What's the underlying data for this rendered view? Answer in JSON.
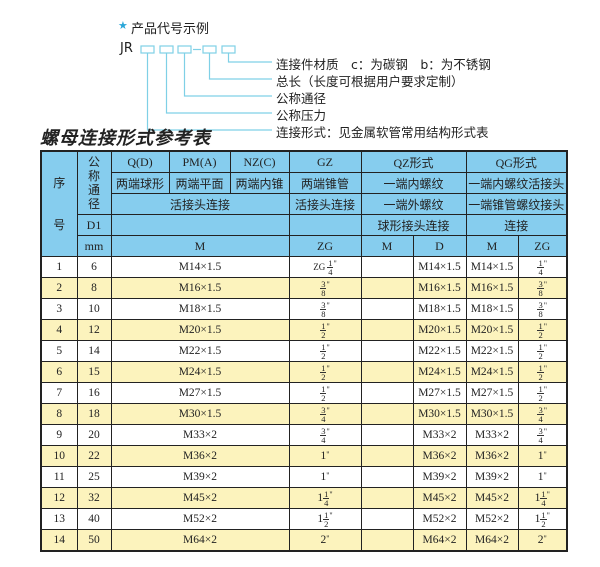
{
  "code_example": {
    "star_icon": "star-icon",
    "title": "产品代号示例",
    "prefix": "JR",
    "line_color": "#7fd0e6",
    "labels": [
      "连接件材质　c：为碳钢　b：为不锈钢",
      "总长（长度可根据用户要求定制）",
      "公称通径",
      "公称压力",
      "连接形式：见金属软管常用结构形式表"
    ]
  },
  "table_title": "螺母连接形式参考表",
  "colors": {
    "header_bg": "#86cdee",
    "highlight_row_bg": "#fcf3bd"
  },
  "header": {
    "seq": "序号",
    "nominal": "公称通径",
    "row1": [
      "Q(D)",
      "PM(A)",
      "NZ(C)",
      "GZ",
      "QZ形式",
      "QG形式"
    ],
    "row2": [
      "两端球形",
      "两端平面",
      "两端内锥",
      "两端锥管",
      "一端内螺纹",
      "一端内螺纹活接头"
    ],
    "row3": [
      "活接头连接",
      "活接头连接",
      "一端外螺纹",
      "一端锥管螺纹接头"
    ],
    "row4": [
      "D1",
      "",
      "",
      "球形接头连接",
      "连接"
    ],
    "row5": [
      "mm",
      "M",
      "ZG",
      "M",
      "D",
      "M",
      "ZG"
    ]
  },
  "rows": [
    {
      "no": "1",
      "d1": "6",
      "m": "M14×1.5",
      "zg": {
        "prefix": "ZG",
        "whole": "",
        "num": "1",
        "den": "4"
      },
      "qz_m": "",
      "qz_d": "M14×1.5",
      "qg_m": "M14×1.5",
      "qg_zg": {
        "whole": "",
        "num": "1",
        "den": "4"
      }
    },
    {
      "no": "2",
      "d1": "8",
      "m": "M16×1.5",
      "zg": {
        "whole": "",
        "num": "3",
        "den": "8"
      },
      "qz_m": "",
      "qz_d": "M16×1.5",
      "qg_m": "M16×1.5",
      "qg_zg": {
        "whole": "",
        "num": "3",
        "den": "8"
      }
    },
    {
      "no": "3",
      "d1": "10",
      "m": "M18×1.5",
      "zg": {
        "whole": "",
        "num": "3",
        "den": "8"
      },
      "qz_m": "",
      "qz_d": "M18×1.5",
      "qg_m": "M18×1.5",
      "qg_zg": {
        "whole": "",
        "num": "3",
        "den": "8"
      }
    },
    {
      "no": "4",
      "d1": "12",
      "m": "M20×1.5",
      "zg": {
        "whole": "",
        "num": "1",
        "den": "2"
      },
      "qz_m": "",
      "qz_d": "M20×1.5",
      "qg_m": "M20×1.5",
      "qg_zg": {
        "whole": "",
        "num": "1",
        "den": "2"
      }
    },
    {
      "no": "5",
      "d1": "14",
      "m": "M22×1.5",
      "zg": {
        "whole": "",
        "num": "1",
        "den": "2"
      },
      "qz_m": "",
      "qz_d": "M22×1.5",
      "qg_m": "M22×1.5",
      "qg_zg": {
        "whole": "",
        "num": "1",
        "den": "2"
      }
    },
    {
      "no": "6",
      "d1": "15",
      "m": "M24×1.5",
      "zg": {
        "whole": "",
        "num": "1",
        "den": "2"
      },
      "qz_m": "",
      "qz_d": "M24×1.5",
      "qg_m": "M24×1.5",
      "qg_zg": {
        "whole": "",
        "num": "1",
        "den": "2"
      }
    },
    {
      "no": "7",
      "d1": "16",
      "m": "M27×1.5",
      "zg": {
        "whole": "",
        "num": "1",
        "den": "2"
      },
      "qz_m": "",
      "qz_d": "M27×1.5",
      "qg_m": "M27×1.5",
      "qg_zg": {
        "whole": "",
        "num": "1",
        "den": "2"
      }
    },
    {
      "no": "8",
      "d1": "18",
      "m": "M30×1.5",
      "zg": {
        "whole": "",
        "num": "3",
        "den": "4"
      },
      "qz_m": "",
      "qz_d": "M30×1.5",
      "qg_m": "M30×1.5",
      "qg_zg": {
        "whole": "",
        "num": "3",
        "den": "4"
      }
    },
    {
      "no": "9",
      "d1": "20",
      "m": "M33×2",
      "zg": {
        "whole": "",
        "num": "3",
        "den": "4"
      },
      "qz_m": "",
      "qz_d": "M33×2",
      "qg_m": "M33×2",
      "qg_zg": {
        "whole": "",
        "num": "3",
        "den": "4"
      }
    },
    {
      "no": "10",
      "d1": "22",
      "m": "M36×2",
      "zg": {
        "whole": "1"
      },
      "qz_m": "",
      "qz_d": "M36×2",
      "qg_m": "M36×2",
      "qg_zg": {
        "whole": "1"
      }
    },
    {
      "no": "11",
      "d1": "25",
      "m": "M39×2",
      "zg": {
        "whole": "1"
      },
      "qz_m": "",
      "qz_d": "M39×2",
      "qg_m": "M39×2",
      "qg_zg": {
        "whole": "1"
      }
    },
    {
      "no": "12",
      "d1": "32",
      "m": "M45×2",
      "zg": {
        "whole": "1",
        "num": "1",
        "den": "4"
      },
      "qz_m": "",
      "qz_d": "M45×2",
      "qg_m": "M45×2",
      "qg_zg": {
        "whole": "1",
        "num": "1",
        "den": "4"
      }
    },
    {
      "no": "13",
      "d1": "40",
      "m": "M52×2",
      "zg": {
        "whole": "1",
        "num": "1",
        "den": "2"
      },
      "qz_m": "",
      "qz_d": "M52×2",
      "qg_m": "M52×2",
      "qg_zg": {
        "whole": "1",
        "num": "1",
        "den": "2"
      }
    },
    {
      "no": "14",
      "d1": "50",
      "m": "M64×2",
      "zg": {
        "whole": "2"
      },
      "qz_m": "",
      "qz_d": "M64×2",
      "qg_m": "M64×2",
      "qg_zg": {
        "whole": "2"
      }
    }
  ]
}
